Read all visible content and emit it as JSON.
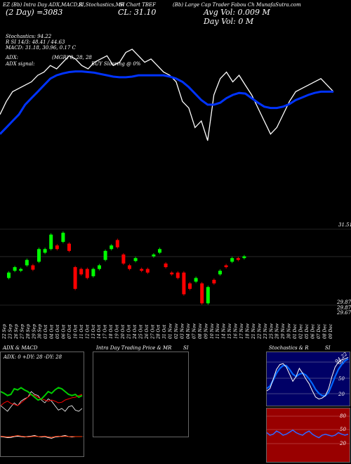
{
  "header": {
    "ticker_line": "EZ (Bb) Intra Day ADX,MACD,R",
    "indicators_line": "SI,Stochastics,MR",
    "chart_line": "SI Chart TBEF",
    "fund_line": "(Bb) Large Cap Trader Fabou Ch MunafaSutra.com"
  },
  "price_info": {
    "day_label": "(2 Day) =3083",
    "close_label": "CL: 31.10",
    "avg_vol_label": "Avg Vol: 0.009 M",
    "day_vol_label": "Day Vol: 0  M"
  },
  "indicators_text": {
    "stoch": "Stochastics: 94.22",
    "rsi": "R      SI 14/3: 48.41 / 44.63",
    "macd": "MACD: 31.18, 30.96, 0.17 C",
    "adx": "ADX:",
    "mgr": "(MGR) 0, 28, 28",
    "adx_signal": "ADX  signal:",
    "buy": "BUY Sloaring @ 0%"
  },
  "price_axis": {
    "high_label": "31.51",
    "low_labels": [
      "29.87",
      "29.87",
      "29.67"
    ]
  },
  "dates": [
    "22 Sep",
    "23 Sep",
    "26 Sep",
    "27 Sep",
    "28 Sep",
    "29 Sep",
    "30 Sep",
    "03 Oct",
    "04 Oct",
    "05 Oct",
    "06 Oct",
    "07 Oct",
    "10 Oct",
    "11 Oct",
    "12 Oct",
    "13 Oct",
    "14 Oct",
    "17 Oct",
    "18 Oct",
    "19 Oct",
    "20 Oct",
    "21 Oct",
    "24 Oct",
    "25 Oct",
    "26 Oct",
    "27 Oct",
    "28 Oct",
    "31 Oct",
    "01 Nov",
    "02 Nov",
    "03 Nov",
    "04 Nov",
    "07 Nov",
    "08 Nov",
    "09 Nov",
    "10 Nov",
    "11 Nov",
    "14 Nov",
    "15 Nov",
    "16 Nov",
    "17 Nov",
    "18 Nov",
    "21 Nov",
    "22 Nov",
    "23 Nov",
    "25 Nov",
    "28 Nov",
    "29 Nov",
    "30 Nov",
    "01 Dec",
    "02 Dec",
    "05 Dec",
    "06 Dec",
    "07 Dec",
    "08 Dec",
    "09 Dec"
  ],
  "panels": {
    "adx_title": "ADX  & MACD",
    "adx_readout": "ADX: 0  +DY: 28  -DY: 28",
    "intra_title": "Intra  Day Trading Price  & MR",
    "intra_si": "SI",
    "stoch_title": "Stochastics & R",
    "stoch_si": "SI",
    "stoch_value": "94.22",
    "stoch_levels": [
      "80",
      "50",
      "20"
    ],
    "rsi_levels": [
      "80",
      "50",
      "20"
    ]
  },
  "chart_data": {
    "type": "line",
    "series": [
      {
        "values": [
          30.7,
          30.9,
          31.05,
          31.1,
          31.15,
          31.2,
          31.3,
          31.35,
          31.45,
          31.4,
          31.5,
          31.6,
          31.55,
          31.45,
          31.4,
          31.5,
          31.55,
          31.6,
          31.45,
          31.5,
          31.65,
          31.7,
          31.6,
          31.5,
          31.55,
          31.45,
          31.35,
          31.3,
          31.2,
          30.9,
          30.8,
          30.5,
          30.6,
          30.3,
          31.0,
          31.25,
          31.35,
          31.2,
          31.3,
          31.15,
          31.0,
          30.8,
          30.6,
          30.4,
          30.5,
          30.7,
          30.9,
          31.05,
          31.1,
          31.15,
          31.2,
          31.25,
          31.15,
          31.05
        ]
      },
      {
        "values": [
          30.4,
          30.5,
          30.6,
          30.7,
          30.85,
          30.95,
          31.05,
          31.15,
          31.25,
          31.3,
          31.33,
          31.35,
          31.36,
          31.36,
          31.35,
          31.34,
          31.32,
          31.3,
          31.28,
          31.27,
          31.27,
          31.28,
          31.3,
          31.3,
          31.3,
          31.3,
          31.3,
          31.28,
          31.25,
          31.2,
          31.12,
          31.02,
          30.92,
          30.85,
          30.85,
          30.88,
          30.95,
          31.0,
          31.03,
          31.02,
          30.95,
          30.88,
          30.82,
          30.8,
          30.8,
          30.82,
          30.86,
          30.92,
          30.96,
          31.0,
          31.03,
          31.05,
          31.05,
          31.05
        ]
      }
    ],
    "candles": [
      {
        "o": 30.25,
        "c": 30.4,
        "up": true
      },
      {
        "o": 30.45,
        "c": 30.55,
        "up": true
      },
      {
        "o": 30.5,
        "c": 30.45,
        "up": true
      },
      {
        "o": 30.6,
        "c": 30.75,
        "up": true
      },
      {
        "o": 30.6,
        "c": 30.48,
        "up": false
      },
      {
        "o": 30.7,
        "c": 31.05,
        "up": true
      },
      {
        "o": 31.05,
        "c": 30.95,
        "up": true
      },
      {
        "o": 31.05,
        "c": 31.45,
        "up": true
      },
      {
        "o": 31.15,
        "c": 31.05,
        "up": false
      },
      {
        "o": 31.5,
        "c": 31.25,
        "up": true
      },
      {
        "o": 31.2,
        "c": 31.0,
        "up": false
      },
      {
        "o": 30.55,
        "c": 29.95,
        "up": false
      },
      {
        "o": 30.5,
        "c": 30.35,
        "up": false
      },
      {
        "o": 30.5,
        "c": 30.25,
        "up": false
      },
      {
        "o": 30.3,
        "c": 30.5,
        "up": true
      },
      {
        "o": 30.5,
        "c": 30.6,
        "up": true
      },
      {
        "o": 30.75,
        "c": 31.0,
        "up": true
      },
      {
        "o": 31.05,
        "c": 31.15,
        "up": true
      },
      {
        "o": 31.3,
        "c": 31.1,
        "up": false
      },
      {
        "o": 30.9,
        "c": 30.65,
        "up": false
      },
      {
        "o": 30.6,
        "c": 30.5,
        "up": false
      },
      {
        "o": 30.8,
        "c": 30.72,
        "up": true
      },
      {
        "o": 30.5,
        "c": 30.45,
        "up": false
      },
      {
        "o": 30.5,
        "c": 30.4,
        "up": false
      },
      {
        "o": 30.9,
        "c": 30.85,
        "up": true
      },
      {
        "o": 30.95,
        "c": 31.05,
        "up": true
      },
      {
        "o": 30.65,
        "c": 30.55,
        "up": false
      },
      {
        "o": 30.4,
        "c": 30.35,
        "up": false
      },
      {
        "o": 30.4,
        "c": 30.25,
        "up": false
      },
      {
        "o": 30.4,
        "c": 29.8,
        "up": false
      },
      {
        "o": 30.1,
        "c": 29.95,
        "up": false
      },
      {
        "o": 30.15,
        "c": 30.25,
        "up": true
      },
      {
        "o": 30.1,
        "c": 29.55,
        "up": false
      },
      {
        "o": 29.55,
        "c": 30.0,
        "up": true
      },
      {
        "o": 30.2,
        "c": 30.1,
        "up": false
      },
      {
        "o": 30.35,
        "c": 30.45,
        "up": true
      },
      {
        "o": 30.6,
        "c": 30.55,
        "up": false
      },
      {
        "o": 30.7,
        "c": 30.8,
        "up": true
      },
      {
        "o": 30.8,
        "c": 30.75,
        "up": false
      },
      {
        "o": 30.8,
        "c": 30.85,
        "up": true
      }
    ],
    "colors": {
      "price": "#ffffff",
      "average": "#0033ff",
      "up": "#00ff00",
      "down": "#ff0000"
    }
  },
  "adx_chart": {
    "green": [
      0.55,
      0.52,
      0.48,
      0.5,
      0.6,
      0.58,
      0.62,
      0.58,
      0.55,
      0.5,
      0.45,
      0.4,
      0.42,
      0.48,
      0.55,
      0.52,
      0.58,
      0.62,
      0.6,
      0.55,
      0.5,
      0.48,
      0.5,
      0.45,
      0.48
    ],
    "red": [
      0.3,
      0.35,
      0.38,
      0.34,
      0.32,
      0.3,
      0.35,
      0.4,
      0.45,
      0.5,
      0.48,
      0.45,
      0.42,
      0.4,
      0.38,
      0.4,
      0.38,
      0.35,
      0.36,
      0.4,
      0.42,
      0.44,
      0.45,
      0.48,
      0.5
    ],
    "white": [
      0.3,
      0.25,
      0.2,
      0.28,
      0.35,
      0.3,
      0.38,
      0.42,
      0.45,
      0.55,
      0.5,
      0.48,
      0.4,
      0.35,
      0.42,
      0.38,
      0.3,
      0.22,
      0.25,
      0.2,
      0.28,
      0.3,
      0.22,
      0.2,
      0.25
    ],
    "macd_white": [
      0.5,
      0.48,
      0.45,
      0.46,
      0.5,
      0.52,
      0.5,
      0.48,
      0.5,
      0.52,
      0.55,
      0.5,
      0.48,
      0.5,
      0.45,
      0.42,
      0.48,
      0.5,
      0.52,
      0.55,
      0.5,
      0.48,
      0.5,
      0.5,
      0.5
    ],
    "macd_red": [
      0.52,
      0.5,
      0.48,
      0.5,
      0.52,
      0.55,
      0.52,
      0.5,
      0.48,
      0.5,
      0.52,
      0.5,
      0.5,
      0.52,
      0.48,
      0.45,
      0.5,
      0.52,
      0.5,
      0.52,
      0.5,
      0.5,
      0.5,
      0.5,
      0.5
    ]
  },
  "stoch_chart": {
    "white": [
      0.25,
      0.3,
      0.5,
      0.7,
      0.8,
      0.82,
      0.75,
      0.6,
      0.45,
      0.55,
      0.72,
      0.62,
      0.5,
      0.4,
      0.25,
      0.12,
      0.08,
      0.1,
      0.15,
      0.3,
      0.55,
      0.75,
      0.85,
      0.9,
      0.92,
      0.95
    ],
    "blue": [
      0.3,
      0.35,
      0.48,
      0.62,
      0.72,
      0.78,
      0.78,
      0.7,
      0.6,
      0.55,
      0.6,
      0.62,
      0.58,
      0.5,
      0.4,
      0.28,
      0.2,
      0.15,
      0.15,
      0.22,
      0.38,
      0.55,
      0.7,
      0.8,
      0.88,
      0.92
    ],
    "rsi": [
      0.55,
      0.5,
      0.52,
      0.58,
      0.55,
      0.5,
      0.52,
      0.56,
      0.6,
      0.55,
      0.52,
      0.5,
      0.55,
      0.58,
      0.52,
      0.48,
      0.45,
      0.5,
      0.52,
      0.5,
      0.48,
      0.5,
      0.55,
      0.52,
      0.5,
      0.52
    ]
  }
}
